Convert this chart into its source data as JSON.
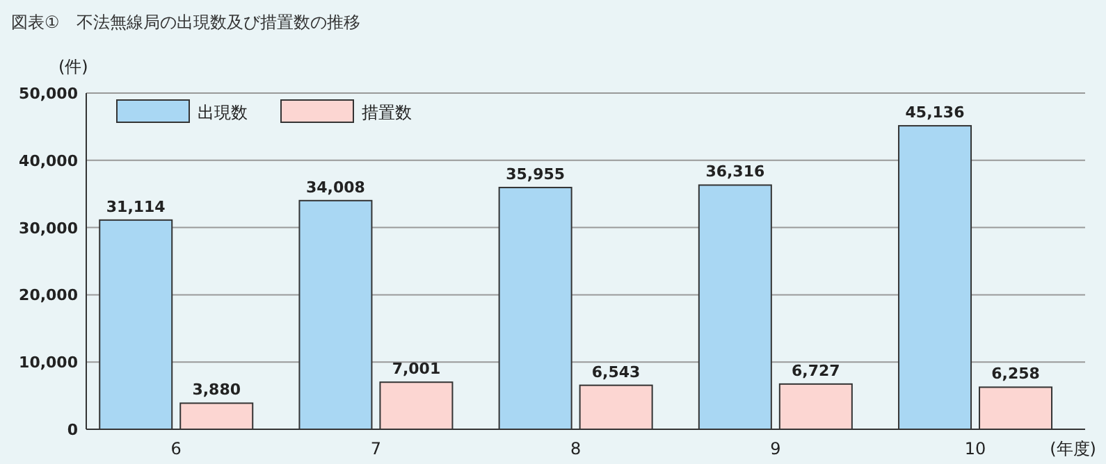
{
  "chart_data": {
    "type": "bar",
    "title": "図表①　不法無線局の出現数及び措置数の推移",
    "ylabel": "(件)",
    "xlabel": "(年度)",
    "categories": [
      "6",
      "7",
      "8",
      "9",
      "10"
    ],
    "series": [
      {
        "name": "出現数",
        "color": "#a9d7f3",
        "values": [
          31114,
          34008,
          35955,
          36316,
          45136
        ],
        "value_labels": [
          "31,114",
          "34,008",
          "35,955",
          "36,316",
          "45,136"
        ]
      },
      {
        "name": "措置数",
        "color": "#fcd6d2",
        "values": [
          3880,
          7001,
          6543,
          6727,
          6258
        ],
        "value_labels": [
          "3,880",
          "7,001",
          "6,543",
          "6,727",
          "6,258"
        ]
      }
    ],
    "ylim": [
      0,
      50000
    ],
    "yticks": [
      {
        "value": 0,
        "label": "0"
      },
      {
        "value": 10000,
        "label": "10,000"
      },
      {
        "value": 20000,
        "label": "20,000"
      },
      {
        "value": 30000,
        "label": "30,000"
      },
      {
        "value": 40000,
        "label": "40,000"
      },
      {
        "value": 50000,
        "label": "50,000"
      }
    ],
    "grid": "y",
    "legend": "top left"
  }
}
